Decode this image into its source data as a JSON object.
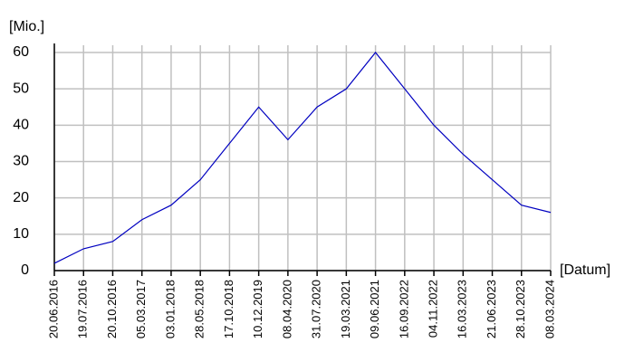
{
  "chart_data": {
    "type": "line",
    "y_label": "[Mio.]",
    "x_label": "[Datum]",
    "categories": [
      "20.06.2016",
      "19.07.2016",
      "20.10.2016",
      "05.03.2017",
      "03.01.2018",
      "28.05.2018",
      "17.10.2018",
      "10.12.2019",
      "08.04.2020",
      "31.07.2020",
      "19.03.2021",
      "09.06.2021",
      "16.09.2022",
      "04.11.2022",
      "16.03.2023",
      "21.06.2023",
      "28.10.2023",
      "08.03.2024"
    ],
    "values": [
      2,
      6,
      8,
      14,
      18,
      25,
      35,
      45,
      36,
      45,
      50,
      60,
      50,
      40,
      32,
      25,
      18,
      16
    ],
    "color": "#0000c0",
    "ylim": [
      0,
      60
    ],
    "yticks": [
      0,
      10,
      20,
      30,
      40,
      50,
      60
    ],
    "grid": true
  }
}
